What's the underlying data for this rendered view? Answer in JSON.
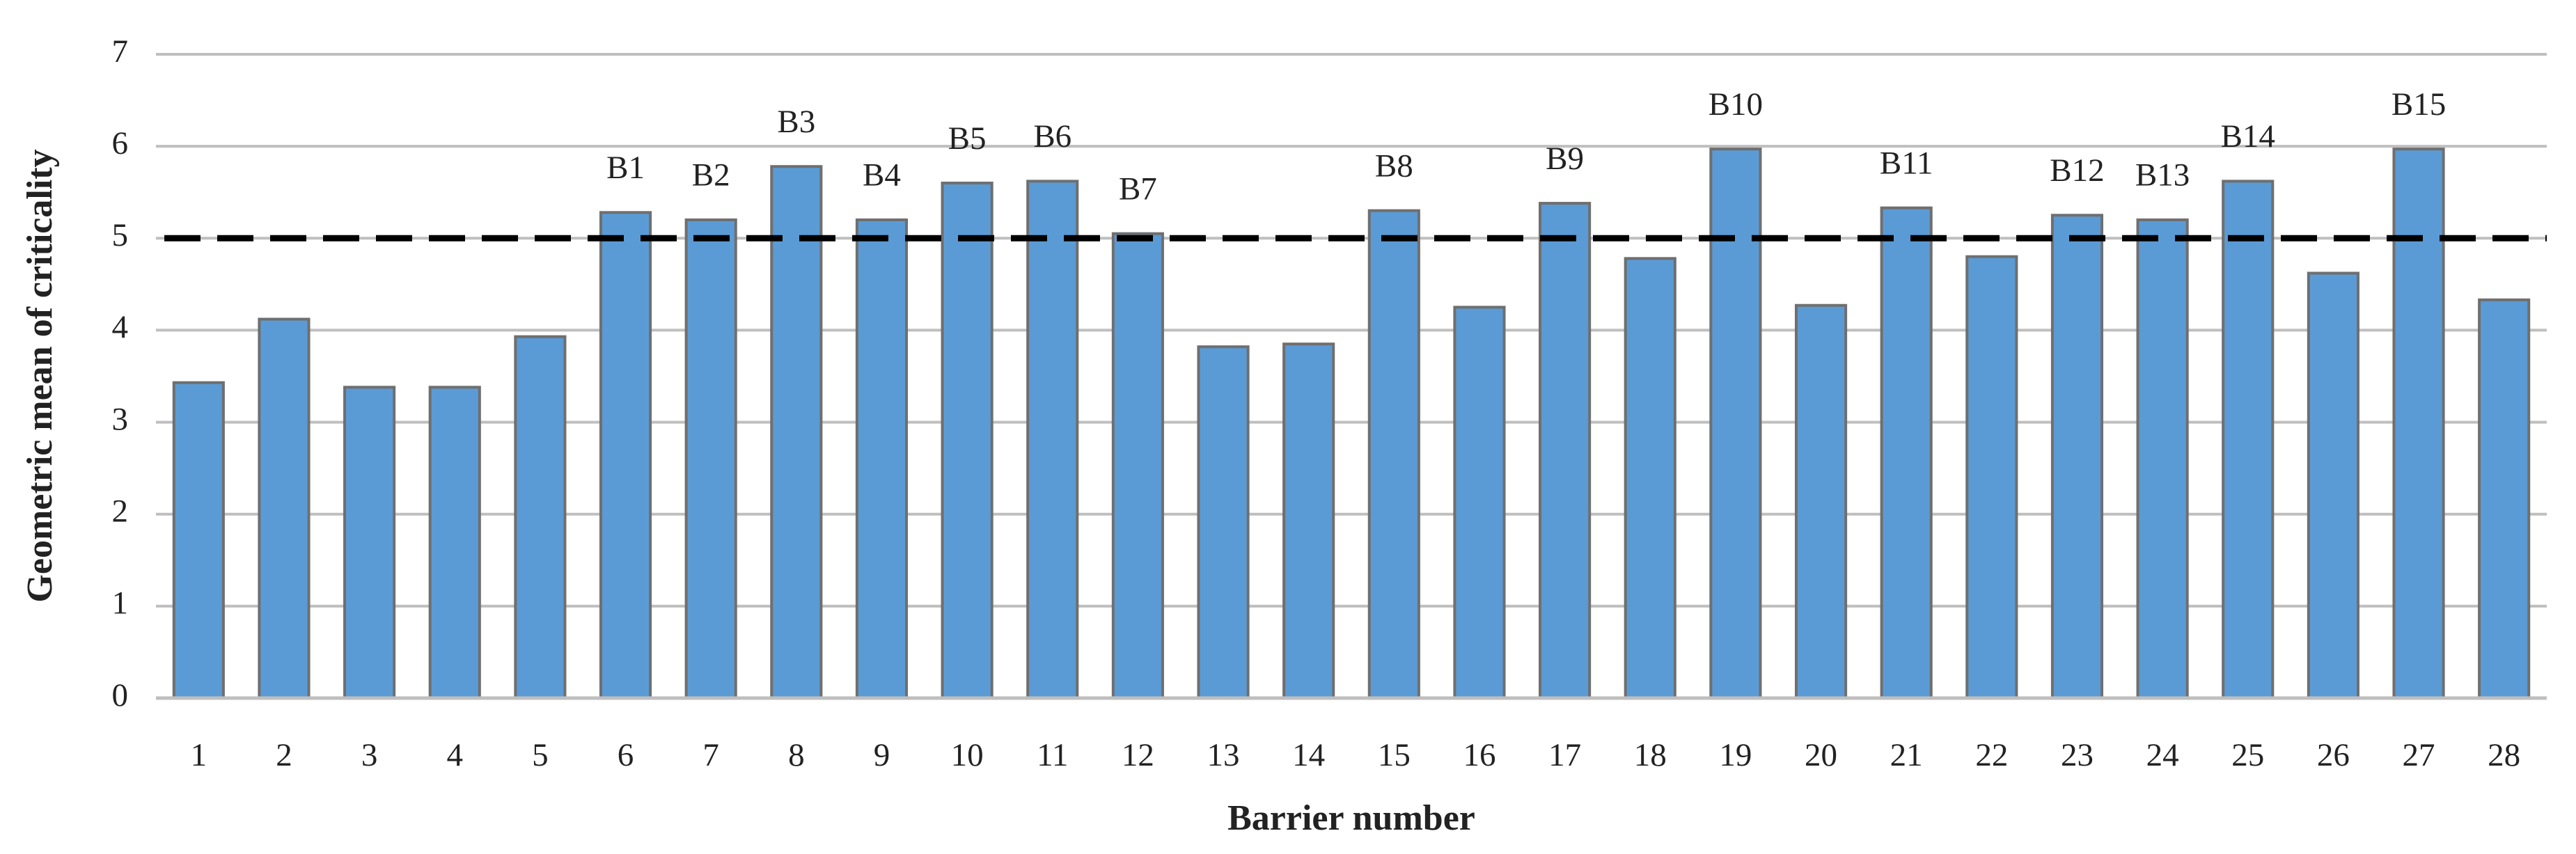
{
  "chart_data": {
    "type": "bar",
    "x_label": "Barrier number",
    "y_label": "Geometric mean of criticality",
    "categories": [
      "1",
      "2",
      "3",
      "4",
      "5",
      "6",
      "7",
      "8",
      "9",
      "10",
      "11",
      "12",
      "13",
      "14",
      "15",
      "16",
      "17",
      "18",
      "19",
      "20",
      "21",
      "22",
      "23",
      "24",
      "25",
      "26",
      "27",
      "28"
    ],
    "values": [
      3.43,
      4.12,
      3.38,
      3.38,
      3.93,
      5.28,
      5.2,
      5.78,
      5.2,
      5.6,
      5.62,
      5.05,
      3.82,
      3.85,
      5.3,
      4.25,
      5.38,
      4.78,
      5.97,
      4.27,
      5.33,
      4.8,
      5.25,
      5.2,
      5.62,
      4.62,
      5.97,
      4.33
    ],
    "bar_labels": [
      null,
      null,
      null,
      null,
      null,
      "B1",
      "B2",
      "B3",
      "B4",
      "B5",
      "B6",
      "B7",
      null,
      null,
      "B8",
      null,
      "B9",
      null,
      "B10",
      null,
      "B11",
      null,
      "B12",
      "B13",
      "B14",
      null,
      "B15",
      null
    ],
    "color": "#5b9bd5",
    "threshold": 5,
    "ylim": [
      0,
      7
    ],
    "yticks": [
      0,
      1,
      2,
      3,
      4,
      5,
      6,
      7
    ],
    "grid": true
  }
}
